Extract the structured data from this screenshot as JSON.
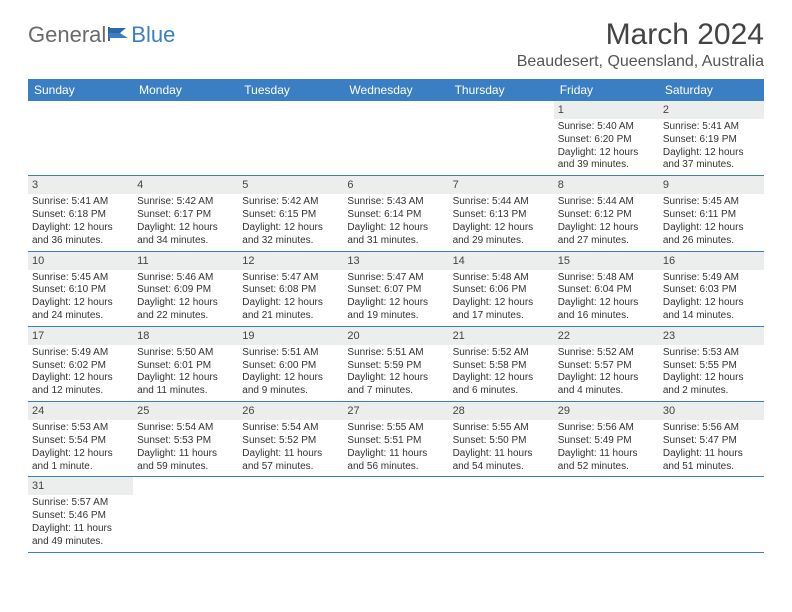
{
  "logo": {
    "word1": "General",
    "word2": "Blue"
  },
  "title": "March 2024",
  "location": "Beaudesert, Queensland, Australia",
  "colors": {
    "header_bar": "#3a7fc4",
    "daynum_bg": "#eceded",
    "row_border": "#3a7fc4",
    "text": "#333333",
    "title_text": "#444444",
    "logo_gray": "#6b6b6b",
    "logo_blue": "#3a7fc4",
    "background": "#ffffff"
  },
  "days_of_week": [
    "Sunday",
    "Monday",
    "Tuesday",
    "Wednesday",
    "Thursday",
    "Friday",
    "Saturday"
  ],
  "weeks": [
    [
      {
        "n": "",
        "sr": "",
        "ss": "",
        "dl": ""
      },
      {
        "n": "",
        "sr": "",
        "ss": "",
        "dl": ""
      },
      {
        "n": "",
        "sr": "",
        "ss": "",
        "dl": ""
      },
      {
        "n": "",
        "sr": "",
        "ss": "",
        "dl": ""
      },
      {
        "n": "",
        "sr": "",
        "ss": "",
        "dl": ""
      },
      {
        "n": "1",
        "sr": "Sunrise: 5:40 AM",
        "ss": "Sunset: 6:20 PM",
        "dl": "Daylight: 12 hours and 39 minutes."
      },
      {
        "n": "2",
        "sr": "Sunrise: 5:41 AM",
        "ss": "Sunset: 6:19 PM",
        "dl": "Daylight: 12 hours and 37 minutes."
      }
    ],
    [
      {
        "n": "3",
        "sr": "Sunrise: 5:41 AM",
        "ss": "Sunset: 6:18 PM",
        "dl": "Daylight: 12 hours and 36 minutes."
      },
      {
        "n": "4",
        "sr": "Sunrise: 5:42 AM",
        "ss": "Sunset: 6:17 PM",
        "dl": "Daylight: 12 hours and 34 minutes."
      },
      {
        "n": "5",
        "sr": "Sunrise: 5:42 AM",
        "ss": "Sunset: 6:15 PM",
        "dl": "Daylight: 12 hours and 32 minutes."
      },
      {
        "n": "6",
        "sr": "Sunrise: 5:43 AM",
        "ss": "Sunset: 6:14 PM",
        "dl": "Daylight: 12 hours and 31 minutes."
      },
      {
        "n": "7",
        "sr": "Sunrise: 5:44 AM",
        "ss": "Sunset: 6:13 PM",
        "dl": "Daylight: 12 hours and 29 minutes."
      },
      {
        "n": "8",
        "sr": "Sunrise: 5:44 AM",
        "ss": "Sunset: 6:12 PM",
        "dl": "Daylight: 12 hours and 27 minutes."
      },
      {
        "n": "9",
        "sr": "Sunrise: 5:45 AM",
        "ss": "Sunset: 6:11 PM",
        "dl": "Daylight: 12 hours and 26 minutes."
      }
    ],
    [
      {
        "n": "10",
        "sr": "Sunrise: 5:45 AM",
        "ss": "Sunset: 6:10 PM",
        "dl": "Daylight: 12 hours and 24 minutes."
      },
      {
        "n": "11",
        "sr": "Sunrise: 5:46 AM",
        "ss": "Sunset: 6:09 PM",
        "dl": "Daylight: 12 hours and 22 minutes."
      },
      {
        "n": "12",
        "sr": "Sunrise: 5:47 AM",
        "ss": "Sunset: 6:08 PM",
        "dl": "Daylight: 12 hours and 21 minutes."
      },
      {
        "n": "13",
        "sr": "Sunrise: 5:47 AM",
        "ss": "Sunset: 6:07 PM",
        "dl": "Daylight: 12 hours and 19 minutes."
      },
      {
        "n": "14",
        "sr": "Sunrise: 5:48 AM",
        "ss": "Sunset: 6:06 PM",
        "dl": "Daylight: 12 hours and 17 minutes."
      },
      {
        "n": "15",
        "sr": "Sunrise: 5:48 AM",
        "ss": "Sunset: 6:04 PM",
        "dl": "Daylight: 12 hours and 16 minutes."
      },
      {
        "n": "16",
        "sr": "Sunrise: 5:49 AM",
        "ss": "Sunset: 6:03 PM",
        "dl": "Daylight: 12 hours and 14 minutes."
      }
    ],
    [
      {
        "n": "17",
        "sr": "Sunrise: 5:49 AM",
        "ss": "Sunset: 6:02 PM",
        "dl": "Daylight: 12 hours and 12 minutes."
      },
      {
        "n": "18",
        "sr": "Sunrise: 5:50 AM",
        "ss": "Sunset: 6:01 PM",
        "dl": "Daylight: 12 hours and 11 minutes."
      },
      {
        "n": "19",
        "sr": "Sunrise: 5:51 AM",
        "ss": "Sunset: 6:00 PM",
        "dl": "Daylight: 12 hours and 9 minutes."
      },
      {
        "n": "20",
        "sr": "Sunrise: 5:51 AM",
        "ss": "Sunset: 5:59 PM",
        "dl": "Daylight: 12 hours and 7 minutes."
      },
      {
        "n": "21",
        "sr": "Sunrise: 5:52 AM",
        "ss": "Sunset: 5:58 PM",
        "dl": "Daylight: 12 hours and 6 minutes."
      },
      {
        "n": "22",
        "sr": "Sunrise: 5:52 AM",
        "ss": "Sunset: 5:57 PM",
        "dl": "Daylight: 12 hours and 4 minutes."
      },
      {
        "n": "23",
        "sr": "Sunrise: 5:53 AM",
        "ss": "Sunset: 5:55 PM",
        "dl": "Daylight: 12 hours and 2 minutes."
      }
    ],
    [
      {
        "n": "24",
        "sr": "Sunrise: 5:53 AM",
        "ss": "Sunset: 5:54 PM",
        "dl": "Daylight: 12 hours and 1 minute."
      },
      {
        "n": "25",
        "sr": "Sunrise: 5:54 AM",
        "ss": "Sunset: 5:53 PM",
        "dl": "Daylight: 11 hours and 59 minutes."
      },
      {
        "n": "26",
        "sr": "Sunrise: 5:54 AM",
        "ss": "Sunset: 5:52 PM",
        "dl": "Daylight: 11 hours and 57 minutes."
      },
      {
        "n": "27",
        "sr": "Sunrise: 5:55 AM",
        "ss": "Sunset: 5:51 PM",
        "dl": "Daylight: 11 hours and 56 minutes."
      },
      {
        "n": "28",
        "sr": "Sunrise: 5:55 AM",
        "ss": "Sunset: 5:50 PM",
        "dl": "Daylight: 11 hours and 54 minutes."
      },
      {
        "n": "29",
        "sr": "Sunrise: 5:56 AM",
        "ss": "Sunset: 5:49 PM",
        "dl": "Daylight: 11 hours and 52 minutes."
      },
      {
        "n": "30",
        "sr": "Sunrise: 5:56 AM",
        "ss": "Sunset: 5:47 PM",
        "dl": "Daylight: 11 hours and 51 minutes."
      }
    ],
    [
      {
        "n": "31",
        "sr": "Sunrise: 5:57 AM",
        "ss": "Sunset: 5:46 PM",
        "dl": "Daylight: 11 hours and 49 minutes."
      },
      {
        "n": "",
        "sr": "",
        "ss": "",
        "dl": ""
      },
      {
        "n": "",
        "sr": "",
        "ss": "",
        "dl": ""
      },
      {
        "n": "",
        "sr": "",
        "ss": "",
        "dl": ""
      },
      {
        "n": "",
        "sr": "",
        "ss": "",
        "dl": ""
      },
      {
        "n": "",
        "sr": "",
        "ss": "",
        "dl": ""
      },
      {
        "n": "",
        "sr": "",
        "ss": "",
        "dl": ""
      }
    ]
  ]
}
